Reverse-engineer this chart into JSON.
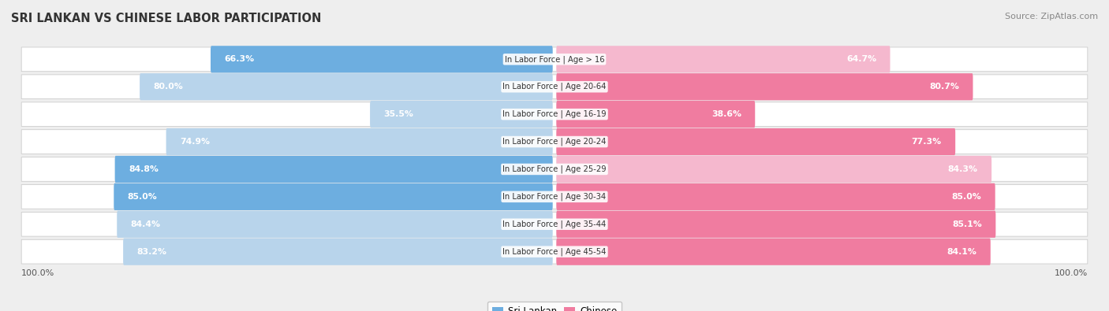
{
  "title": "SRI LANKAN VS CHINESE LABOR PARTICIPATION",
  "source": "Source: ZipAtlas.com",
  "categories": [
    "In Labor Force | Age > 16",
    "In Labor Force | Age 20-64",
    "In Labor Force | Age 16-19",
    "In Labor Force | Age 20-24",
    "In Labor Force | Age 25-29",
    "In Labor Force | Age 30-34",
    "In Labor Force | Age 35-44",
    "In Labor Force | Age 45-54"
  ],
  "sri_lankan": [
    66.3,
    80.0,
    35.5,
    74.9,
    84.8,
    85.0,
    84.4,
    83.2
  ],
  "chinese": [
    64.7,
    80.7,
    38.6,
    77.3,
    84.3,
    85.0,
    85.1,
    84.1
  ],
  "sri_lankan_color": "#6daee0",
  "sri_lankan_light_color": "#b8d4eb",
  "chinese_color": "#f07ca0",
  "chinese_light_color": "#f5b8ce",
  "bg_color": "#eeeeee",
  "title_color": "#333333",
  "source_color": "#888888",
  "legend_labels": [
    "Sri Lankan",
    "Chinese"
  ]
}
